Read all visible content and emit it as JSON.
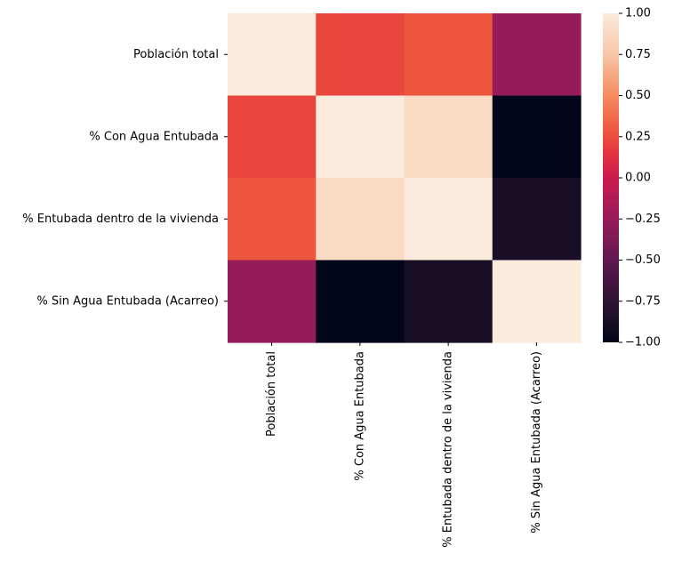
{
  "chart_data": {
    "type": "heatmap",
    "title": "",
    "xlabel": "",
    "ylabel": "",
    "rows": [
      "Población total",
      "% Con Agua Entubada",
      "% Entubada dentro de la vivienda",
      "% Sin Agua Entubada (Acarreo)"
    ],
    "columns": [
      "Población total",
      "% Con Agua Entubada",
      "% Entubada dentro de la vivienda",
      "% Sin Agua Entubada (Acarreo)"
    ],
    "values": [
      [
        1.0,
        0.22,
        0.28,
        -0.26
      ],
      [
        0.22,
        1.0,
        0.88,
        -1.0
      ],
      [
        0.28,
        0.88,
        1.0,
        -0.88
      ],
      [
        -0.26,
        -1.0,
        -0.88,
        1.0
      ]
    ],
    "colorbar": {
      "range": [
        -1.0,
        1.0
      ],
      "ticks": [
        "1.00",
        "0.75",
        "0.50",
        "0.25",
        "0.00",
        "−0.25",
        "−0.50",
        "−0.75",
        "−1.00"
      ],
      "tick_values": [
        1.0,
        0.75,
        0.5,
        0.25,
        0.0,
        -0.25,
        -0.5,
        -0.75,
        -1.0
      ],
      "colormap": "rocket"
    }
  }
}
